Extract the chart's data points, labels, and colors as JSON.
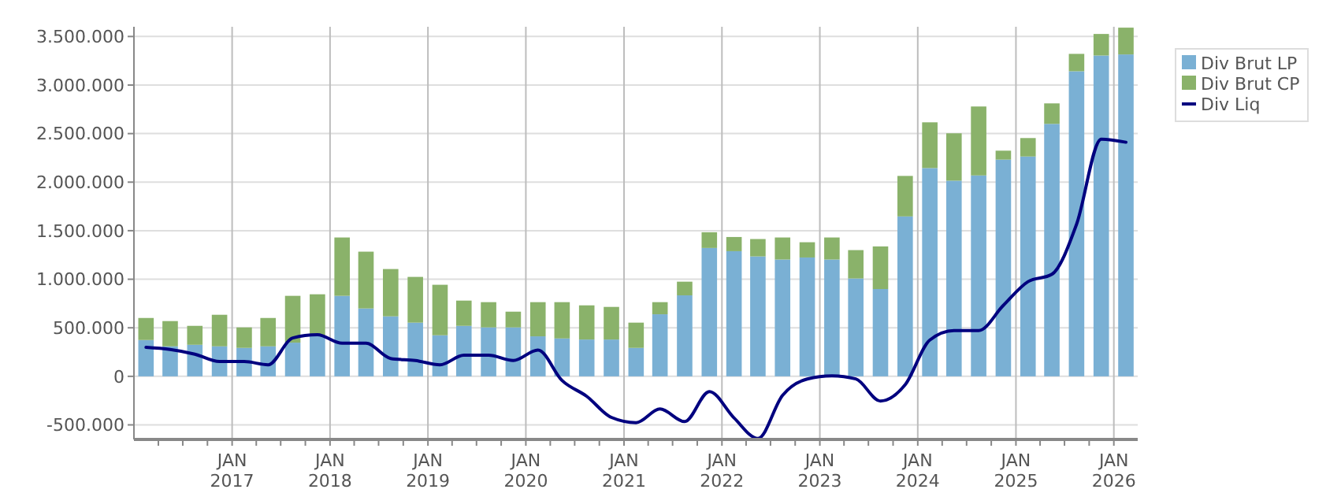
{
  "chart_data": {
    "type": "bar",
    "stacked": true,
    "x": [
      "2016-02-15",
      "2016-05-15",
      "2016-08-15",
      "2016-11-15",
      "2017-02-15",
      "2017-05-15",
      "2017-08-15",
      "2017-11-15",
      "2018-02-15",
      "2018-05-15",
      "2018-08-15",
      "2018-11-15",
      "2019-02-15",
      "2019-05-15",
      "2019-08-15",
      "2019-11-15",
      "2020-02-15",
      "2020-05-15",
      "2020-08-15",
      "2020-11-15",
      "2021-02-15",
      "2021-05-15",
      "2021-08-15",
      "2021-11-15",
      "2022-02-15",
      "2022-05-15",
      "2022-08-15",
      "2022-11-15",
      "2023-02-15",
      "2023-05-15",
      "2023-08-15",
      "2023-11-15",
      "2024-02-15",
      "2024-05-15",
      "2024-08-15",
      "2024-11-15",
      "2025-02-15",
      "2025-05-15",
      "2025-08-15",
      "2025-11-15",
      "2026-02-15"
    ],
    "series": [
      {
        "name": "Div Brut LP",
        "color": "#7ab0d4",
        "values": [
          374000,
          309000,
          325000,
          309000,
          293000,
          309000,
          347000,
          417000,
          829000,
          699000,
          618000,
          553000,
          423000,
          520000,
          504000,
          504000,
          412000,
          390000,
          379000,
          379000,
          293000,
          639000,
          834000,
          1322000,
          1289000,
          1235000,
          1203000,
          1224000,
          1203000,
          1008000,
          899000,
          1647000,
          2145000,
          2015000,
          2069000,
          2232000,
          2264000,
          2600000,
          3142000,
          3304000,
          3315000
        ]
      },
      {
        "name": "Div Brut CP",
        "color": "#8ab26a",
        "values": [
          227000,
          260000,
          195000,
          325000,
          211000,
          292000,
          482000,
          428000,
          601000,
          585000,
          487000,
          471000,
          520000,
          260000,
          260000,
          162000,
          352000,
          374000,
          352000,
          336000,
          260000,
          125000,
          141000,
          162000,
          146000,
          179000,
          227000,
          157000,
          227000,
          292000,
          439000,
          417000,
          471000,
          488000,
          710000,
          92000,
          190000,
          211000,
          179000,
          222000,
          276000
        ]
      },
      {
        "name": "Div Liq",
        "type": "line",
        "color": "#00007f",
        "values": [
          298000,
          276000,
          228000,
          152000,
          152000,
          119000,
          395000,
          428000,
          341000,
          341000,
          184000,
          163000,
          119000,
          217000,
          217000,
          163000,
          271000,
          -43000,
          -206000,
          -423000,
          -477000,
          -336000,
          -466000,
          -157000,
          -428000,
          -640000,
          -195000,
          -27000,
          5000,
          -27000,
          -255000,
          -87000,
          374000,
          471000,
          471000,
          731000,
          975000,
          1051000,
          1566000,
          2443000,
          2411000
        ]
      }
    ],
    "xlim": [
      "2016-01-01",
      "2026-03-31"
    ],
    "xticks": [
      {
        "value": "2016-04-01",
        "label": null
      },
      {
        "value": "2016-07-01",
        "label": null
      },
      {
        "value": "2016-10-01",
        "label": null
      },
      {
        "value": "2017-01-01",
        "label": "JAN\n2017"
      },
      {
        "value": "2017-04-01",
        "label": null
      },
      {
        "value": "2017-07-01",
        "label": null
      },
      {
        "value": "2017-10-01",
        "label": null
      },
      {
        "value": "2018-01-01",
        "label": "JAN\n2018"
      },
      {
        "value": "2018-04-01",
        "label": null
      },
      {
        "value": "2018-07-01",
        "label": null
      },
      {
        "value": "2018-10-01",
        "label": null
      },
      {
        "value": "2019-01-01",
        "label": "JAN\n2019"
      },
      {
        "value": "2019-04-01",
        "label": null
      },
      {
        "value": "2019-07-01",
        "label": null
      },
      {
        "value": "2019-10-01",
        "label": null
      },
      {
        "value": "2020-01-01",
        "label": "JAN\n2020"
      },
      {
        "value": "2020-04-01",
        "label": null
      },
      {
        "value": "2020-07-01",
        "label": null
      },
      {
        "value": "2020-10-01",
        "label": null
      },
      {
        "value": "2021-01-01",
        "label": "JAN\n2021"
      },
      {
        "value": "2021-04-01",
        "label": null
      },
      {
        "value": "2021-07-01",
        "label": null
      },
      {
        "value": "2021-10-01",
        "label": null
      },
      {
        "value": "2022-01-01",
        "label": "JAN\n2022"
      },
      {
        "value": "2022-04-01",
        "label": null
      },
      {
        "value": "2022-07-01",
        "label": null
      },
      {
        "value": "2022-10-01",
        "label": null
      },
      {
        "value": "2023-01-01",
        "label": "JAN\n2023"
      },
      {
        "value": "2023-04-01",
        "label": null
      },
      {
        "value": "2023-07-01",
        "label": null
      },
      {
        "value": "2023-10-01",
        "label": null
      },
      {
        "value": "2024-01-01",
        "label": "JAN\n2024"
      },
      {
        "value": "2024-04-01",
        "label": null
      },
      {
        "value": "2024-07-01",
        "label": null
      },
      {
        "value": "2024-10-01",
        "label": null
      },
      {
        "value": "2025-01-01",
        "label": "JAN\n2025"
      },
      {
        "value": "2025-04-01",
        "label": null
      },
      {
        "value": "2025-07-01",
        "label": null
      },
      {
        "value": "2025-10-01",
        "label": null
      },
      {
        "value": "2026-01-01",
        "label": "JAN\n2026"
      }
    ],
    "ylim": [
      -650000,
      3600000
    ],
    "yticks": [
      {
        "value": -500000,
        "label": "-500.000"
      },
      0,
      {
        "value": 500000,
        "label": "500.000"
      },
      {
        "value": 1000000,
        "label": "1.000.000"
      },
      {
        "value": 1500000,
        "label": "1.500.000"
      },
      {
        "value": 2000000,
        "label": "2.000.000"
      },
      {
        "value": 2500000,
        "label": "2.500.000"
      },
      {
        "value": 3000000,
        "label": "3.000.000"
      },
      {
        "value": 3500000,
        "label": "3.500.000"
      }
    ],
    "grid": true,
    "legend": "right",
    "line_style": "solid",
    "marker": "none"
  }
}
